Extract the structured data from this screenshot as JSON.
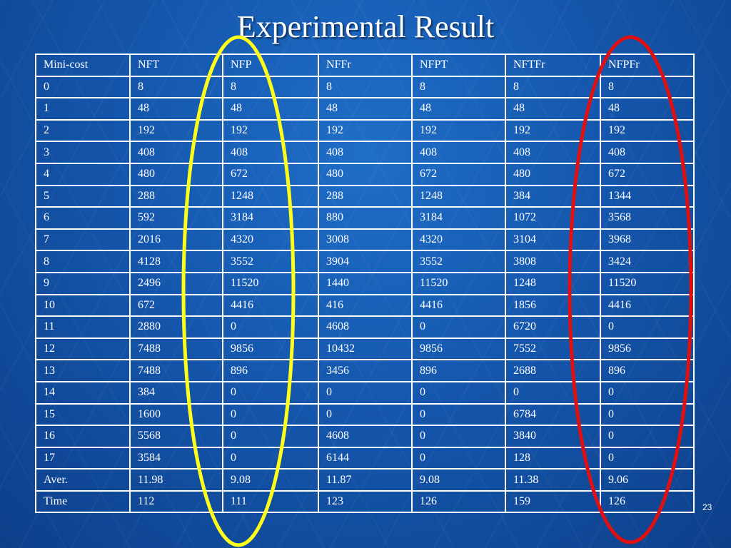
{
  "slide": {
    "title": "Experimental Result",
    "page_number": "23"
  },
  "table": {
    "columns": [
      "Mini-cost",
      "NFT",
      "NFP",
      "NFFr",
      "NFPT",
      "NFTFr",
      "NFPFr"
    ],
    "rows": [
      [
        "0",
        "8",
        "8",
        "8",
        "8",
        "8",
        "8"
      ],
      [
        "1",
        "48",
        "48",
        "48",
        "48",
        "48",
        "48"
      ],
      [
        "2",
        "192",
        "192",
        "192",
        "192",
        "192",
        "192"
      ],
      [
        "3",
        "408",
        "408",
        "408",
        "408",
        "408",
        "408"
      ],
      [
        "4",
        "480",
        "672",
        "480",
        "672",
        "480",
        "672"
      ],
      [
        "5",
        "288",
        "1248",
        "288",
        "1248",
        "384",
        "1344"
      ],
      [
        "6",
        "592",
        "3184",
        "880",
        "3184",
        "1072",
        "3568"
      ],
      [
        "7",
        "2016",
        "4320",
        "3008",
        "4320",
        "3104",
        "3968"
      ],
      [
        "8",
        "4128",
        "3552",
        "3904",
        "3552",
        "3808",
        "3424"
      ],
      [
        "9",
        "2496",
        "11520",
        "1440",
        "11520",
        "1248",
        "11520"
      ],
      [
        "10",
        "672",
        "4416",
        "416",
        "4416",
        "1856",
        "4416"
      ],
      [
        "11",
        "2880",
        "0",
        "4608",
        "0",
        "6720",
        "0"
      ],
      [
        "12",
        "7488",
        "9856",
        "10432",
        "9856",
        "7552",
        "9856"
      ],
      [
        "13",
        "7488",
        "896",
        "3456",
        "896",
        "2688",
        "896"
      ],
      [
        "14",
        "384",
        "0",
        "0",
        "0",
        "0",
        "0"
      ],
      [
        "15",
        "1600",
        "0",
        "0",
        "0",
        "6784",
        "0"
      ],
      [
        "16",
        "5568",
        "0",
        "4608",
        "0",
        "3840",
        "0"
      ],
      [
        "17",
        "3584",
        "0",
        "6144",
        "0",
        "128",
        "0"
      ],
      [
        "Aver.",
        "11.98",
        "9.08",
        "11.87",
        "9.08",
        "11.38",
        "9.06"
      ],
      [
        "Time",
        "112",
        "111",
        "123",
        "126",
        "159",
        "126"
      ]
    ]
  },
  "highlights": [
    {
      "column": "NFP",
      "color": "#ffff1a"
    },
    {
      "column": "NFPFr",
      "color": "#e01010"
    }
  ]
}
